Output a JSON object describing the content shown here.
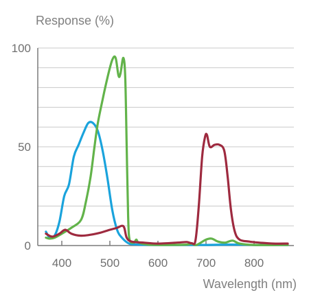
{
  "chart_data": {
    "type": "line",
    "title": "",
    "ylabel": "Response (%)",
    "xlabel": "Wavelength (nm)",
    "xlim": [
      350,
      870
    ],
    "ylim": [
      0,
      100
    ],
    "x_ticks": [
      400,
      500,
      600,
      700,
      800
    ],
    "y_ticks": [
      0,
      50,
      100
    ],
    "grid": true,
    "grid_step_y": 10,
    "series": [
      {
        "color": "#1aa3dc",
        "points": [
          [
            367,
            7
          ],
          [
            375,
            4
          ],
          [
            385,
            5
          ],
          [
            395,
            12
          ],
          [
            405,
            25
          ],
          [
            415,
            31
          ],
          [
            425,
            45
          ],
          [
            435,
            51
          ],
          [
            445,
            57
          ],
          [
            455,
            62
          ],
          [
            465,
            62
          ],
          [
            475,
            58
          ],
          [
            485,
            48
          ],
          [
            495,
            34
          ],
          [
            505,
            18
          ],
          [
            515,
            8
          ],
          [
            525,
            4
          ],
          [
            540,
            1
          ],
          [
            560,
            0.5
          ],
          [
            600,
            0.3
          ],
          [
            650,
            0.3
          ],
          [
            700,
            0.3
          ],
          [
            750,
            0.5
          ],
          [
            800,
            0.3
          ],
          [
            870,
            0.3
          ]
        ]
      },
      {
        "color": "#62b34a",
        "points": [
          [
            367,
            4
          ],
          [
            375,
            3.5
          ],
          [
            385,
            4
          ],
          [
            400,
            6
          ],
          [
            420,
            9
          ],
          [
            440,
            13
          ],
          [
            450,
            22
          ],
          [
            460,
            35
          ],
          [
            468,
            50
          ],
          [
            475,
            62
          ],
          [
            485,
            74
          ],
          [
            495,
            85
          ],
          [
            505,
            94
          ],
          [
            512,
            95
          ],
          [
            518,
            86
          ],
          [
            522,
            87
          ],
          [
            528,
            95
          ],
          [
            532,
            85
          ],
          [
            535,
            50
          ],
          [
            538,
            15
          ],
          [
            541,
            3
          ],
          [
            550,
            1.5
          ],
          [
            555,
            3
          ],
          [
            560,
            1.5
          ],
          [
            580,
            0.5
          ],
          [
            620,
            0.3
          ],
          [
            660,
            0.5
          ],
          [
            670,
            1
          ],
          [
            680,
            0.3
          ],
          [
            700,
            3
          ],
          [
            712,
            3.5
          ],
          [
            725,
            2
          ],
          [
            740,
            1.5
          ],
          [
            755,
            2.5
          ],
          [
            770,
            1
          ],
          [
            800,
            0.3
          ],
          [
            870,
            0.3
          ]
        ]
      },
      {
        "color": "#9e2a3f",
        "points": [
          [
            367,
            6
          ],
          [
            380,
            4.5
          ],
          [
            395,
            6
          ],
          [
            407,
            8
          ],
          [
            420,
            6
          ],
          [
            440,
            5
          ],
          [
            460,
            5.5
          ],
          [
            480,
            6.5
          ],
          [
            500,
            8
          ],
          [
            515,
            9
          ],
          [
            525,
            10
          ],
          [
            530,
            9
          ],
          [
            535,
            4
          ],
          [
            545,
            2
          ],
          [
            570,
            1.5
          ],
          [
            600,
            1
          ],
          [
            640,
            1.5
          ],
          [
            660,
            1.8
          ],
          [
            670,
            1.2
          ],
          [
            678,
            2.5
          ],
          [
            685,
            20
          ],
          [
            692,
            45
          ],
          [
            698,
            55
          ],
          [
            702,
            56
          ],
          [
            708,
            50
          ],
          [
            718,
            51
          ],
          [
            728,
            51
          ],
          [
            738,
            48
          ],
          [
            745,
            35
          ],
          [
            752,
            18
          ],
          [
            760,
            7
          ],
          [
            770,
            3
          ],
          [
            790,
            2
          ],
          [
            810,
            1.5
          ],
          [
            840,
            1
          ],
          [
            870,
            1
          ]
        ]
      }
    ]
  }
}
